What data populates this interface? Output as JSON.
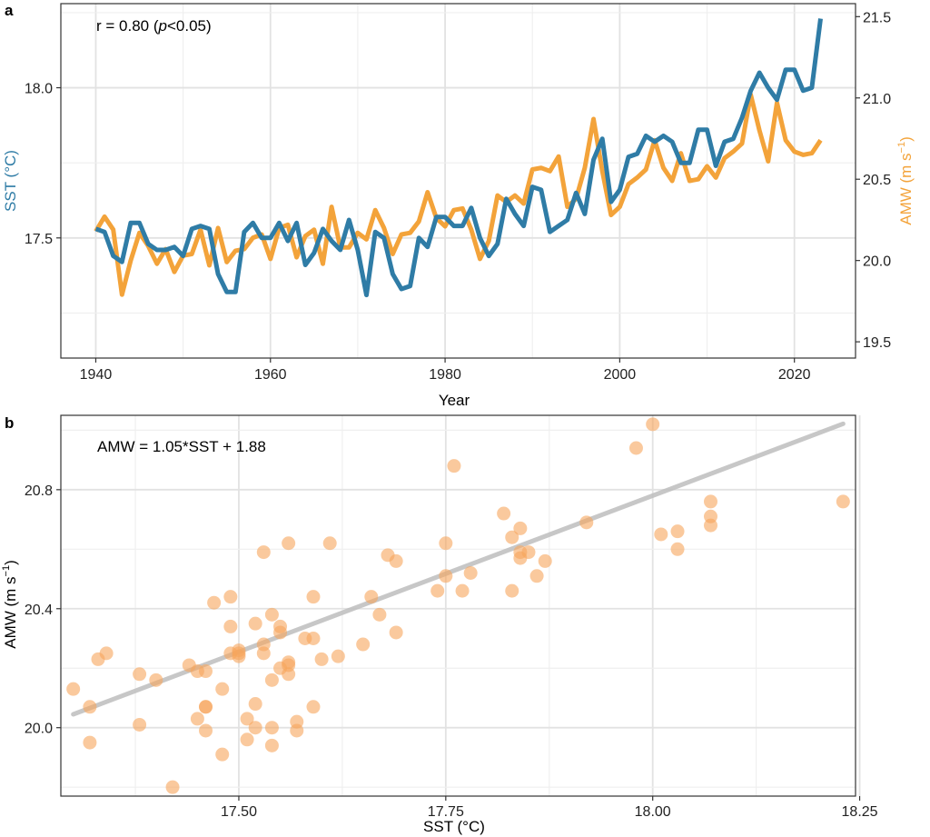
{
  "colors": {
    "sst": "#2f7ca6",
    "amw": "#f3a33a",
    "scatter": "#f6a55c",
    "fit": "#bdbdbd"
  },
  "chart_data": [
    {
      "panel_label": "a",
      "type": "line",
      "annotation": {
        "text_prefix": "r = 0.80 (",
        "text_italic": "p",
        "text_suffix": "<0.05)"
      },
      "xlabel": "Year",
      "xlim": [
        1936,
        2027
      ],
      "x_ticks": [
        1940,
        1960,
        1980,
        2000,
        2020
      ],
      "ylabel_left": "SST (°C)",
      "ylim_left": [
        17.1,
        18.28
      ],
      "y_ticks_left": [
        "17.5",
        "18.0"
      ],
      "ylabel_right": "AMW (m s",
      "ylabel_right_sup": "−1",
      "ylabel_right_close": ")",
      "ylim_right": [
        19.4,
        21.58
      ],
      "y_ticks_right": [
        "19.5",
        "20.0",
        "20.5",
        "21.0",
        "21.5"
      ],
      "grid": true,
      "x": [
        1940,
        1941,
        1942,
        1943,
        1944,
        1945,
        1946,
        1947,
        1948,
        1949,
        1950,
        1951,
        1952,
        1953,
        1954,
        1955,
        1956,
        1957,
        1958,
        1959,
        1960,
        1961,
        1962,
        1963,
        1964,
        1965,
        1966,
        1967,
        1968,
        1969,
        1970,
        1971,
        1972,
        1973,
        1974,
        1975,
        1976,
        1977,
        1978,
        1979,
        1980,
        1981,
        1982,
        1983,
        1984,
        1985,
        1986,
        1987,
        1988,
        1989,
        1990,
        1991,
        1992,
        1993,
        1994,
        1995,
        1996,
        1997,
        1998,
        1999,
        2000,
        2001,
        2002,
        2003,
        2004,
        2005,
        2006,
        2007,
        2008,
        2009,
        2010,
        2011,
        2012,
        2013,
        2014,
        2015,
        2016,
        2017,
        2018,
        2019,
        2020,
        2021,
        2022,
        2023
      ],
      "series": [
        {
          "axis": "left",
          "values": [
            17.53,
            17.52,
            17.44,
            17.42,
            17.55,
            17.55,
            17.48,
            17.46,
            17.46,
            17.47,
            17.44,
            17.53,
            17.54,
            17.53,
            17.38,
            17.32,
            17.32,
            17.52,
            17.55,
            17.5,
            17.5,
            17.55,
            17.49,
            17.55,
            17.41,
            17.45,
            17.53,
            17.49,
            17.46,
            17.56,
            17.46,
            17.31,
            17.52,
            17.5,
            17.38,
            17.33,
            17.34,
            17.5,
            17.47,
            17.57,
            17.57,
            17.54,
            17.54,
            17.6,
            17.5,
            17.44,
            17.48,
            17.63,
            17.58,
            17.54,
            17.67,
            17.66,
            17.52,
            17.54,
            17.56,
            17.65,
            17.58,
            17.76,
            17.83,
            17.62,
            17.66,
            17.77,
            17.78,
            17.84,
            17.82,
            17.84,
            17.82,
            17.75,
            17.75,
            17.86,
            17.86,
            17.74,
            17.82,
            17.83,
            17.9,
            17.99,
            18.05,
            18.0,
            17.96,
            18.06,
            18.06,
            17.99,
            18.0,
            18.23
          ]
        },
        {
          "axis": "right",
          "values": [
            20.18,
            20.27,
            20.19,
            19.79,
            20.0,
            20.17,
            20.09,
            19.98,
            20.07,
            19.93,
            20.03,
            20.04,
            20.19,
            19.97,
            20.2,
            19.99,
            20.06,
            20.07,
            20.14,
            20.16,
            20.01,
            20.2,
            20.22,
            20.02,
            20.15,
            20.19,
            19.98,
            20.33,
            20.08,
            20.08,
            20.17,
            20.13,
            20.31,
            20.2,
            20.04,
            20.16,
            20.17,
            20.24,
            20.42,
            20.26,
            20.21,
            20.31,
            20.32,
            20.19,
            20.01,
            20.12,
            20.4,
            20.36,
            20.4,
            20.35,
            20.56,
            20.57,
            20.55,
            20.64,
            20.33,
            20.38,
            20.57,
            20.87,
            20.55,
            20.28,
            20.33,
            20.47,
            20.51,
            20.56,
            20.74,
            20.57,
            20.49,
            20.66,
            20.49,
            20.5,
            20.58,
            20.51,
            20.63,
            20.67,
            20.72,
            21.02,
            20.8,
            20.61,
            20.97,
            20.74,
            20.67,
            20.65,
            20.66,
            20.74
          ]
        }
      ]
    },
    {
      "panel_label": "b",
      "type": "scatter",
      "annotation": "AMW = 1.05*SST + 1.88",
      "xlabel": "SST (°C)",
      "xlim": [
        17.285,
        18.245
      ],
      "x_ticks": [
        "17.50",
        "17.75",
        "18.00",
        "18.25"
      ],
      "ylabel": "AMW (m s",
      "ylabel_sup": "−1",
      "ylabel_close": ")",
      "ylim": [
        19.77,
        21.05
      ],
      "y_ticks": [
        "20.0",
        "20.4",
        "20.8"
      ],
      "grid": true,
      "fit": {
        "slope": 1.05,
        "intercept": 1.88,
        "x_range": [
          17.3,
          18.23
        ]
      },
      "points": [
        [
          17.3,
          20.13
        ],
        [
          17.32,
          20.07
        ],
        [
          17.32,
          19.95
        ],
        [
          17.33,
          20.23
        ],
        [
          17.34,
          20.25
        ],
        [
          17.38,
          20.18
        ],
        [
          17.38,
          20.01
        ],
        [
          17.4,
          20.16
        ],
        [
          17.42,
          19.8
        ],
        [
          17.44,
          20.21
        ],
        [
          17.45,
          20.19
        ],
        [
          17.45,
          20.03
        ],
        [
          17.46,
          20.19
        ],
        [
          17.46,
          20.07
        ],
        [
          17.46,
          20.07
        ],
        [
          17.46,
          19.99
        ],
        [
          17.47,
          20.42
        ],
        [
          17.48,
          19.91
        ],
        [
          17.48,
          20.13
        ],
        [
          17.49,
          20.34
        ],
        [
          17.49,
          20.25
        ],
        [
          17.49,
          20.44
        ],
        [
          17.5,
          20.25
        ],
        [
          17.5,
          20.24
        ],
        [
          17.5,
          20.26
        ],
        [
          17.51,
          20.03
        ],
        [
          17.51,
          19.96
        ],
        [
          17.52,
          20.0
        ],
        [
          17.52,
          20.08
        ],
        [
          17.52,
          20.35
        ],
        [
          17.53,
          20.59
        ],
        [
          17.53,
          20.25
        ],
        [
          17.53,
          20.28
        ],
        [
          17.54,
          20.38
        ],
        [
          17.54,
          20.16
        ],
        [
          17.54,
          19.94
        ],
        [
          17.54,
          20.0
        ],
        [
          17.55,
          20.32
        ],
        [
          17.55,
          20.2
        ],
        [
          17.55,
          20.34
        ],
        [
          17.56,
          20.62
        ],
        [
          17.56,
          20.22
        ],
        [
          17.56,
          20.18
        ],
        [
          17.56,
          20.21
        ],
        [
          17.57,
          20.02
        ],
        [
          17.57,
          19.99
        ],
        [
          17.58,
          20.3
        ],
        [
          17.59,
          20.07
        ],
        [
          17.59,
          20.3
        ],
        [
          17.59,
          20.44
        ],
        [
          17.6,
          20.23
        ],
        [
          17.61,
          20.62
        ],
        [
          17.62,
          20.24
        ],
        [
          17.65,
          20.28
        ],
        [
          17.66,
          20.44
        ],
        [
          17.67,
          20.38
        ],
        [
          17.68,
          20.58
        ],
        [
          17.69,
          20.56
        ],
        [
          17.69,
          20.32
        ],
        [
          17.74,
          20.46
        ],
        [
          17.75,
          20.62
        ],
        [
          17.75,
          20.51
        ],
        [
          17.76,
          20.88
        ],
        [
          17.77,
          20.46
        ],
        [
          17.78,
          20.52
        ],
        [
          17.82,
          20.72
        ],
        [
          17.83,
          20.46
        ],
        [
          17.83,
          20.64
        ],
        [
          17.84,
          20.57
        ],
        [
          17.84,
          20.67
        ],
        [
          17.84,
          20.59
        ],
        [
          17.85,
          20.59
        ],
        [
          17.86,
          20.51
        ],
        [
          17.87,
          20.56
        ],
        [
          17.92,
          20.69
        ],
        [
          17.98,
          20.94
        ],
        [
          18.0,
          21.02
        ],
        [
          18.01,
          20.65
        ],
        [
          18.03,
          20.66
        ],
        [
          18.03,
          20.6
        ],
        [
          18.07,
          20.71
        ],
        [
          18.07,
          20.76
        ],
        [
          18.07,
          20.68
        ],
        [
          18.23,
          20.76
        ]
      ]
    }
  ]
}
